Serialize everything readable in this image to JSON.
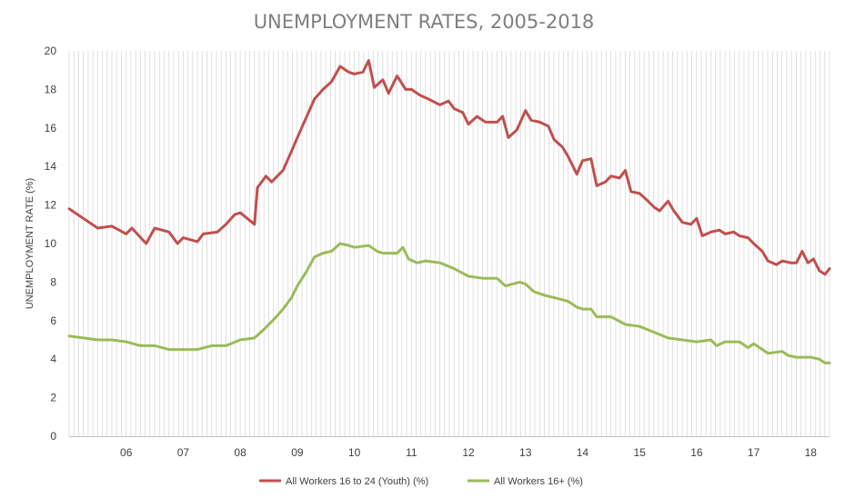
{
  "chart_data": {
    "type": "line",
    "title": "UNEMPLOYMENT RATES, 2005-2018",
    "xlabel": "",
    "ylabel": "UNEMPLOYMENT RATE (%)",
    "ylim": [
      0,
      20
    ],
    "yticks": [
      "0",
      "2",
      "4",
      "6",
      "8",
      "10",
      "12",
      "14",
      "16",
      "18",
      "20"
    ],
    "xlim": [
      2005.0,
      2018.33
    ],
    "xticks": [
      {
        "label": "06",
        "x": 2006.0
      },
      {
        "label": "07",
        "x": 2007.0
      },
      {
        "label": "08",
        "x": 2008.0
      },
      {
        "label": "09",
        "x": 2009.0
      },
      {
        "label": "10",
        "x": 2010.0
      },
      {
        "label": "11",
        "x": 2011.0
      },
      {
        "label": "12",
        "x": 2012.0
      },
      {
        "label": "13",
        "x": 2013.0
      },
      {
        "label": "14",
        "x": 2014.0
      },
      {
        "label": "15",
        "x": 2015.0
      },
      {
        "label": "16",
        "x": 2016.0
      },
      {
        "label": "17",
        "x": 2017.0
      },
      {
        "label": "18",
        "x": 2018.0
      }
    ],
    "grid": "vertical-lines",
    "legend_position": "bottom",
    "series": [
      {
        "name": "All Workers 16 to 24 (Youth) (%)",
        "color": "#c0504d",
        "points": [
          [
            2005.0,
            11.8
          ],
          [
            2005.5,
            10.8
          ],
          [
            2005.75,
            10.9
          ],
          [
            2006.0,
            10.5
          ],
          [
            2006.1,
            10.8
          ],
          [
            2006.35,
            10.0
          ],
          [
            2006.5,
            10.8
          ],
          [
            2006.75,
            10.6
          ],
          [
            2006.9,
            10.0
          ],
          [
            2007.0,
            10.3
          ],
          [
            2007.25,
            10.1
          ],
          [
            2007.35,
            10.5
          ],
          [
            2007.6,
            10.6
          ],
          [
            2007.75,
            11.0
          ],
          [
            2007.9,
            11.5
          ],
          [
            2008.0,
            11.6
          ],
          [
            2008.25,
            11.0
          ],
          [
            2008.3,
            12.9
          ],
          [
            2008.45,
            13.5
          ],
          [
            2008.55,
            13.2
          ],
          [
            2008.75,
            13.8
          ],
          [
            2008.9,
            14.8
          ],
          [
            2009.0,
            15.5
          ],
          [
            2009.15,
            16.5
          ],
          [
            2009.3,
            17.5
          ],
          [
            2009.45,
            18.0
          ],
          [
            2009.6,
            18.4
          ],
          [
            2009.75,
            19.2
          ],
          [
            2009.9,
            18.9
          ],
          [
            2010.0,
            18.8
          ],
          [
            2010.15,
            18.9
          ],
          [
            2010.25,
            19.5
          ],
          [
            2010.35,
            18.1
          ],
          [
            2010.5,
            18.5
          ],
          [
            2010.6,
            17.8
          ],
          [
            2010.75,
            18.7
          ],
          [
            2010.9,
            18.0
          ],
          [
            2011.0,
            18.0
          ],
          [
            2011.15,
            17.7
          ],
          [
            2011.3,
            17.5
          ],
          [
            2011.5,
            17.2
          ],
          [
            2011.65,
            17.4
          ],
          [
            2011.75,
            17.0
          ],
          [
            2011.9,
            16.8
          ],
          [
            2012.0,
            16.2
          ],
          [
            2012.15,
            16.6
          ],
          [
            2012.3,
            16.3
          ],
          [
            2012.5,
            16.3
          ],
          [
            2012.6,
            16.6
          ],
          [
            2012.7,
            15.5
          ],
          [
            2012.85,
            15.9
          ],
          [
            2013.0,
            16.9
          ],
          [
            2013.1,
            16.4
          ],
          [
            2013.25,
            16.3
          ],
          [
            2013.4,
            16.1
          ],
          [
            2013.5,
            15.4
          ],
          [
            2013.65,
            15.0
          ],
          [
            2013.75,
            14.5
          ],
          [
            2013.9,
            13.6
          ],
          [
            2014.0,
            14.3
          ],
          [
            2014.15,
            14.4
          ],
          [
            2014.25,
            13.0
          ],
          [
            2014.4,
            13.2
          ],
          [
            2014.5,
            13.5
          ],
          [
            2014.65,
            13.4
          ],
          [
            2014.75,
            13.8
          ],
          [
            2014.85,
            12.7
          ],
          [
            2015.0,
            12.6
          ],
          [
            2015.15,
            12.2
          ],
          [
            2015.25,
            11.9
          ],
          [
            2015.35,
            11.7
          ],
          [
            2015.5,
            12.2
          ],
          [
            2015.6,
            11.7
          ],
          [
            2015.75,
            11.1
          ],
          [
            2015.9,
            11.0
          ],
          [
            2016.0,
            11.3
          ],
          [
            2016.1,
            10.4
          ],
          [
            2016.25,
            10.6
          ],
          [
            2016.4,
            10.7
          ],
          [
            2016.5,
            10.5
          ],
          [
            2016.65,
            10.6
          ],
          [
            2016.75,
            10.4
          ],
          [
            2016.9,
            10.3
          ],
          [
            2017.0,
            10.0
          ],
          [
            2017.15,
            9.6
          ],
          [
            2017.25,
            9.1
          ],
          [
            2017.4,
            8.9
          ],
          [
            2017.5,
            9.1
          ],
          [
            2017.65,
            9.0
          ],
          [
            2017.75,
            9.0
          ],
          [
            2017.85,
            9.6
          ],
          [
            2017.95,
            9.0
          ],
          [
            2018.05,
            9.2
          ],
          [
            2018.15,
            8.6
          ],
          [
            2018.25,
            8.4
          ],
          [
            2018.33,
            8.7
          ]
        ]
      },
      {
        "name": "All Workers 16+ (%)",
        "color": "#9bbb59",
        "points": [
          [
            2005.0,
            5.2
          ],
          [
            2005.25,
            5.1
          ],
          [
            2005.5,
            5.0
          ],
          [
            2005.75,
            5.0
          ],
          [
            2006.0,
            4.9
          ],
          [
            2006.25,
            4.7
          ],
          [
            2006.5,
            4.7
          ],
          [
            2006.75,
            4.5
          ],
          [
            2007.0,
            4.5
          ],
          [
            2007.25,
            4.5
          ],
          [
            2007.5,
            4.7
          ],
          [
            2007.75,
            4.7
          ],
          [
            2008.0,
            5.0
          ],
          [
            2008.25,
            5.1
          ],
          [
            2008.4,
            5.5
          ],
          [
            2008.6,
            6.1
          ],
          [
            2008.75,
            6.6
          ],
          [
            2008.9,
            7.2
          ],
          [
            2009.0,
            7.8
          ],
          [
            2009.15,
            8.5
          ],
          [
            2009.3,
            9.3
          ],
          [
            2009.45,
            9.5
          ],
          [
            2009.6,
            9.6
          ],
          [
            2009.75,
            10.0
          ],
          [
            2009.9,
            9.9
          ],
          [
            2010.0,
            9.8
          ],
          [
            2010.25,
            9.9
          ],
          [
            2010.4,
            9.6
          ],
          [
            2010.5,
            9.5
          ],
          [
            2010.75,
            9.5
          ],
          [
            2010.85,
            9.8
          ],
          [
            2010.95,
            9.2
          ],
          [
            2011.1,
            9.0
          ],
          [
            2011.25,
            9.1
          ],
          [
            2011.5,
            9.0
          ],
          [
            2011.75,
            8.7
          ],
          [
            2012.0,
            8.3
          ],
          [
            2012.25,
            8.2
          ],
          [
            2012.5,
            8.2
          ],
          [
            2012.65,
            7.8
          ],
          [
            2012.9,
            8.0
          ],
          [
            2013.0,
            7.9
          ],
          [
            2013.15,
            7.5
          ],
          [
            2013.35,
            7.3
          ],
          [
            2013.5,
            7.2
          ],
          [
            2013.75,
            7.0
          ],
          [
            2013.9,
            6.7
          ],
          [
            2014.0,
            6.6
          ],
          [
            2014.15,
            6.6
          ],
          [
            2014.25,
            6.2
          ],
          [
            2014.5,
            6.2
          ],
          [
            2014.75,
            5.8
          ],
          [
            2015.0,
            5.7
          ],
          [
            2015.25,
            5.4
          ],
          [
            2015.5,
            5.1
          ],
          [
            2015.75,
            5.0
          ],
          [
            2016.0,
            4.9
          ],
          [
            2016.25,
            5.0
          ],
          [
            2016.35,
            4.7
          ],
          [
            2016.5,
            4.9
          ],
          [
            2016.75,
            4.9
          ],
          [
            2016.9,
            4.6
          ],
          [
            2017.0,
            4.8
          ],
          [
            2017.25,
            4.3
          ],
          [
            2017.5,
            4.4
          ],
          [
            2017.6,
            4.2
          ],
          [
            2017.75,
            4.1
          ],
          [
            2018.0,
            4.1
          ],
          [
            2018.15,
            4.0
          ],
          [
            2018.25,
            3.8
          ],
          [
            2018.33,
            3.8
          ]
        ]
      }
    ]
  }
}
